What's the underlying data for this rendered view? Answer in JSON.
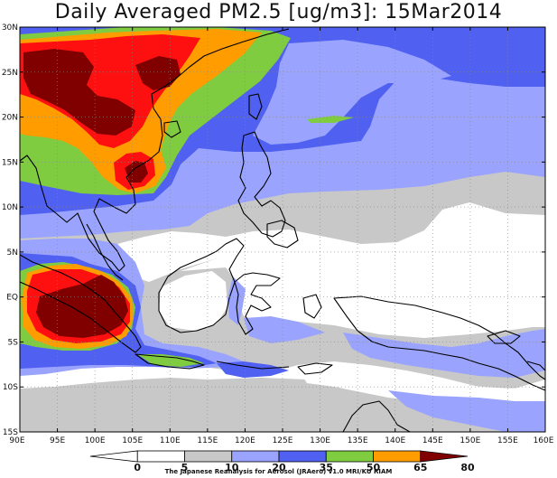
{
  "title": "Daily Averaged PM2.5 [ug/m3]: 15Mar2014",
  "footer": "The Japanese Reanalysis for Aerosol (JRAero) v1.0 MRI/KU RIAM",
  "map": {
    "lat_labels": [
      "30N",
      "25N",
      "20N",
      "15N",
      "10N",
      "5N",
      "EQ",
      "5S",
      "10S",
      "15S"
    ],
    "lon_labels": [
      "90E",
      "95E",
      "100E",
      "105E",
      "110E",
      "115E",
      "120E",
      "125E",
      "130E",
      "135E",
      "140E",
      "145E",
      "150E",
      "155E",
      "160E"
    ],
    "lon_range": [
      90,
      160
    ],
    "lat_range": [
      -15,
      30
    ]
  },
  "colorbar": {
    "levels": [
      "0",
      "5",
      "10",
      "20",
      "35",
      "50",
      "65",
      "80"
    ],
    "colors": [
      "#ffffff",
      "#ffffff",
      "#c8c8c8",
      "#9aa4ff",
      "#5060f0",
      "#80cc40",
      "#ff9c00",
      "#ff1010",
      "#800000"
    ]
  },
  "colors": {
    "gray": "#c8c8c8",
    "lightblue": "#9aa4ff",
    "blue": "#5060f0",
    "green": "#80cc40",
    "orange": "#ff9c00",
    "red": "#ff1010",
    "darkred": "#800000"
  }
}
